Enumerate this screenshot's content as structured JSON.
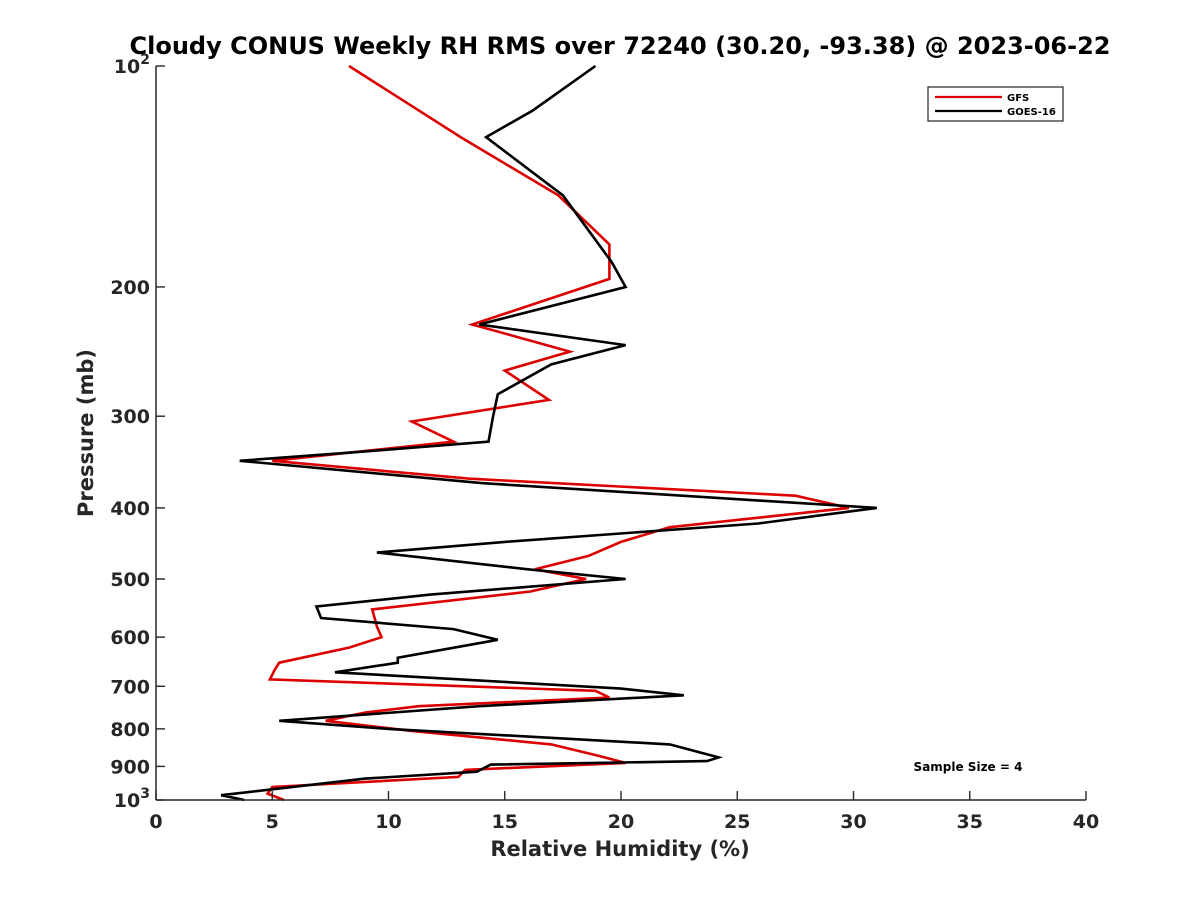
{
  "chart_data": {
    "type": "line",
    "title": "Cloudy CONUS Weekly RH RMS over 72240 (30.20, -93.38) @ 2023-06-22",
    "xlabel": "Relative Humidity (%)",
    "ylabel": "Pressure (mb)",
    "xlim": [
      0,
      40
    ],
    "ylim": [
      100,
      1000
    ],
    "yscale": "log",
    "y_reversed": true,
    "grid": false,
    "x_ticks": [
      0,
      5,
      10,
      15,
      20,
      25,
      30,
      35,
      40
    ],
    "x_tick_labels": [
      "0",
      "5",
      "10",
      "15",
      "20",
      "25",
      "30",
      "35",
      "40"
    ],
    "y_ticks": [
      100,
      200,
      300,
      400,
      500,
      600,
      700,
      800,
      900,
      1000
    ],
    "y_tick_labels": [
      {
        "base": "10",
        "exp": "2"
      },
      {
        "text": "200"
      },
      {
        "text": "300"
      },
      {
        "text": "400"
      },
      {
        "text": "500"
      },
      {
        "text": "600"
      },
      {
        "text": "700"
      },
      {
        "text": "800"
      },
      {
        "text": "900"
      },
      {
        "base": "10",
        "exp": "3"
      }
    ],
    "legend_position": "top-right",
    "annotation": "Sample Size = 4",
    "series": [
      {
        "name": "GFS",
        "color": "#dd0000",
        "points": [
          [
            8.3,
            100
          ],
          [
            13.1,
            125
          ],
          [
            17.3,
            150
          ],
          [
            19.5,
            175
          ],
          [
            19.5,
            195
          ],
          [
            13.6,
            225
          ],
          [
            17.8,
            245
          ],
          [
            15.0,
            260
          ],
          [
            16.9,
            285
          ],
          [
            11.0,
            305
          ],
          [
            12.8,
            325
          ],
          [
            5.0,
            345
          ],
          [
            13.5,
            365
          ],
          [
            27.5,
            385
          ],
          [
            29.8,
            400
          ],
          [
            22.1,
            425
          ],
          [
            20.0,
            445
          ],
          [
            18.6,
            465
          ],
          [
            16.3,
            485
          ],
          [
            18.5,
            500
          ],
          [
            16.1,
            520
          ],
          [
            9.3,
            550
          ],
          [
            9.5,
            580
          ],
          [
            9.7,
            600
          ],
          [
            8.3,
            620
          ],
          [
            5.3,
            650
          ],
          [
            5.1,
            665
          ],
          [
            4.9,
            685
          ],
          [
            18.9,
            710
          ],
          [
            19.5,
            725
          ],
          [
            11.3,
            745
          ],
          [
            9.0,
            760
          ],
          [
            7.3,
            780
          ],
          [
            11.0,
            805
          ],
          [
            17.0,
            840
          ],
          [
            19.0,
            870
          ],
          [
            20.2,
            890
          ],
          [
            13.3,
            910
          ],
          [
            13.0,
            930
          ],
          [
            5.0,
            960
          ],
          [
            4.8,
            980
          ],
          [
            5.5,
            1000
          ]
        ]
      },
      {
        "name": "GOES-16",
        "color": "#000000",
        "points": [
          [
            18.9,
            100
          ],
          [
            16.2,
            115
          ],
          [
            14.2,
            125
          ],
          [
            17.5,
            150
          ],
          [
            19.6,
            185
          ],
          [
            20.2,
            200
          ],
          [
            13.9,
            225
          ],
          [
            20.2,
            240
          ],
          [
            17.0,
            255
          ],
          [
            14.7,
            280
          ],
          [
            14.5,
            300
          ],
          [
            14.3,
            325
          ],
          [
            9.0,
            335
          ],
          [
            3.6,
            345
          ],
          [
            14.0,
            370
          ],
          [
            31.0,
            400
          ],
          [
            25.9,
            420
          ],
          [
            15.0,
            445
          ],
          [
            9.5,
            460
          ],
          [
            16.0,
            485
          ],
          [
            20.2,
            500
          ],
          [
            11.8,
            525
          ],
          [
            6.9,
            545
          ],
          [
            7.1,
            565
          ],
          [
            12.8,
            585
          ],
          [
            14.7,
            605
          ],
          [
            10.4,
            640
          ],
          [
            10.4,
            650
          ],
          [
            7.7,
            670
          ],
          [
            20.0,
            705
          ],
          [
            22.7,
            720
          ],
          [
            13.9,
            745
          ],
          [
            5.3,
            780
          ],
          [
            10.0,
            800
          ],
          [
            22.1,
            840
          ],
          [
            24.2,
            875
          ],
          [
            23.7,
            885
          ],
          [
            14.4,
            895
          ],
          [
            13.8,
            915
          ],
          [
            9.0,
            935
          ],
          [
            2.8,
            985
          ],
          [
            3.8,
            1000
          ]
        ]
      }
    ]
  }
}
